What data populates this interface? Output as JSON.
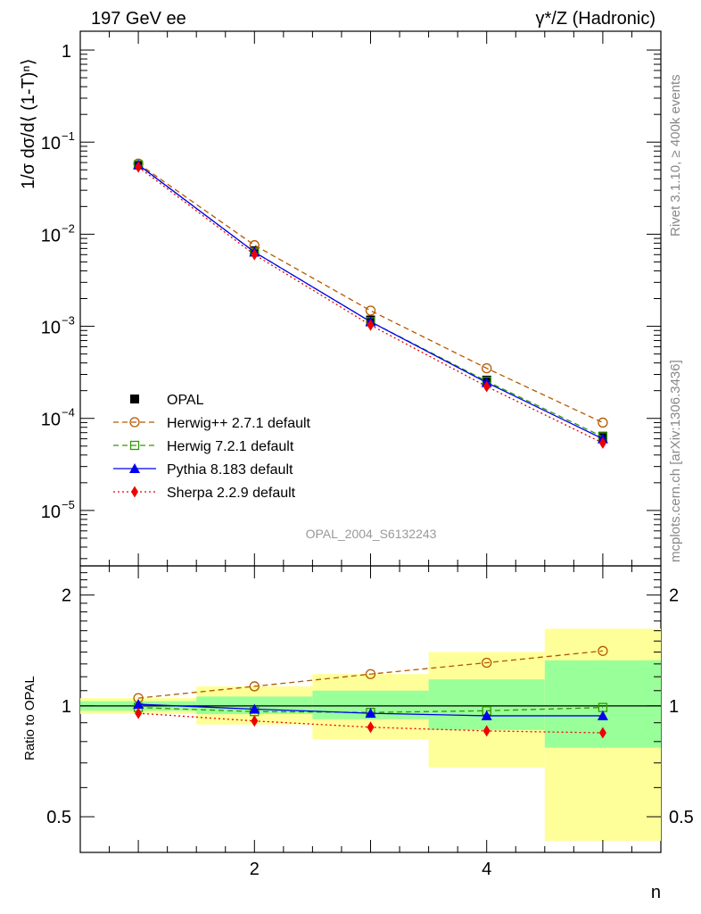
{
  "chart_data": {
    "type": "line",
    "title_left": "197 GeV ee",
    "title_right": "γ*/Z (Hadronic)",
    "watermark": "OPAL_2004_S6132243",
    "side_text_top": "Rivet 3.1.10, ≥ 400k events",
    "side_text_bottom": "mcplots.cern.ch [arXiv:1306.3436]",
    "xlabel": "n",
    "ylabel": "1/σ dσ/d⟨ (1-T)ⁿ⟩",
    "ratio_ylabel": "Ratio to OPAL",
    "xlim": [
      0.5,
      5.5
    ],
    "ylim": [
      2.5e-06,
      1.6
    ],
    "ratio_ylim": [
      0.4,
      2.4
    ],
    "x_ticks": [
      {
        "value": 2,
        "label": "2"
      },
      {
        "value": 4,
        "label": "4"
      }
    ],
    "y_ticks": [
      {
        "value": 1,
        "label": "1"
      },
      {
        "value": 0.1,
        "label": "10",
        "exp": "−1"
      },
      {
        "value": 0.01,
        "label": "10",
        "exp": "−2"
      },
      {
        "value": 0.001,
        "label": "10",
        "exp": "−3"
      },
      {
        "value": 0.0001,
        "label": "10",
        "exp": "−4"
      },
      {
        "value": 1e-05,
        "label": "10",
        "exp": "−5"
      }
    ],
    "ratio_ticks": [
      {
        "value": 0.5,
        "label": "0.5"
      },
      {
        "value": 1,
        "label": "1"
      },
      {
        "value": 2,
        "label": "2"
      }
    ],
    "x": [
      1,
      2,
      3,
      4,
      5
    ],
    "data": {
      "name": "OPAL",
      "values": [
        0.0565,
        0.0066,
        0.00117,
        0.00026,
        6.4e-05
      ],
      "band_inner": [
        [
          0.97,
          1.03
        ],
        [
          0.95,
          1.06
        ],
        [
          0.92,
          1.1
        ],
        [
          0.86,
          1.18
        ],
        [
          0.77,
          1.33
        ]
      ],
      "band_outer": [
        [
          0.95,
          1.05
        ],
        [
          0.89,
          1.13
        ],
        [
          0.81,
          1.22
        ],
        [
          0.68,
          1.4
        ],
        [
          0.43,
          1.62
        ]
      ]
    },
    "series": [
      {
        "name": "Herwig++ 2.7.1 default",
        "color": "#b35900",
        "marker": "open-circle",
        "dash": "6,4",
        "values": [
          0.0585,
          0.0076,
          0.00148,
          0.00035,
          9e-05
        ],
        "ratio": [
          1.05,
          1.13,
          1.22,
          1.31,
          1.41
        ]
      },
      {
        "name": "Herwig 7.2.1 default",
        "color": "#339900",
        "marker": "open-square",
        "dash": "6,4",
        "values": [
          0.0565,
          0.0064,
          0.00112,
          0.000253,
          6.3e-05
        ],
        "ratio": [
          0.99,
          0.965,
          0.96,
          0.97,
          0.99
        ]
      },
      {
        "name": "Pythia 8.183 default",
        "color": "#0000ee",
        "marker": "filled-triangle",
        "dash": "",
        "values": [
          0.0568,
          0.0064,
          0.00112,
          0.000245,
          6e-05
        ],
        "ratio": [
          1.01,
          0.98,
          0.955,
          0.94,
          0.94
        ]
      },
      {
        "name": "Sherpa 2.2.9 default",
        "color": "#ee0000",
        "marker": "filled-diamond",
        "dash": "2,3",
        "values": [
          0.0537,
          0.006,
          0.00103,
          0.000222,
          5.4e-05
        ],
        "ratio": [
          0.955,
          0.91,
          0.875,
          0.855,
          0.845
        ]
      }
    ]
  }
}
